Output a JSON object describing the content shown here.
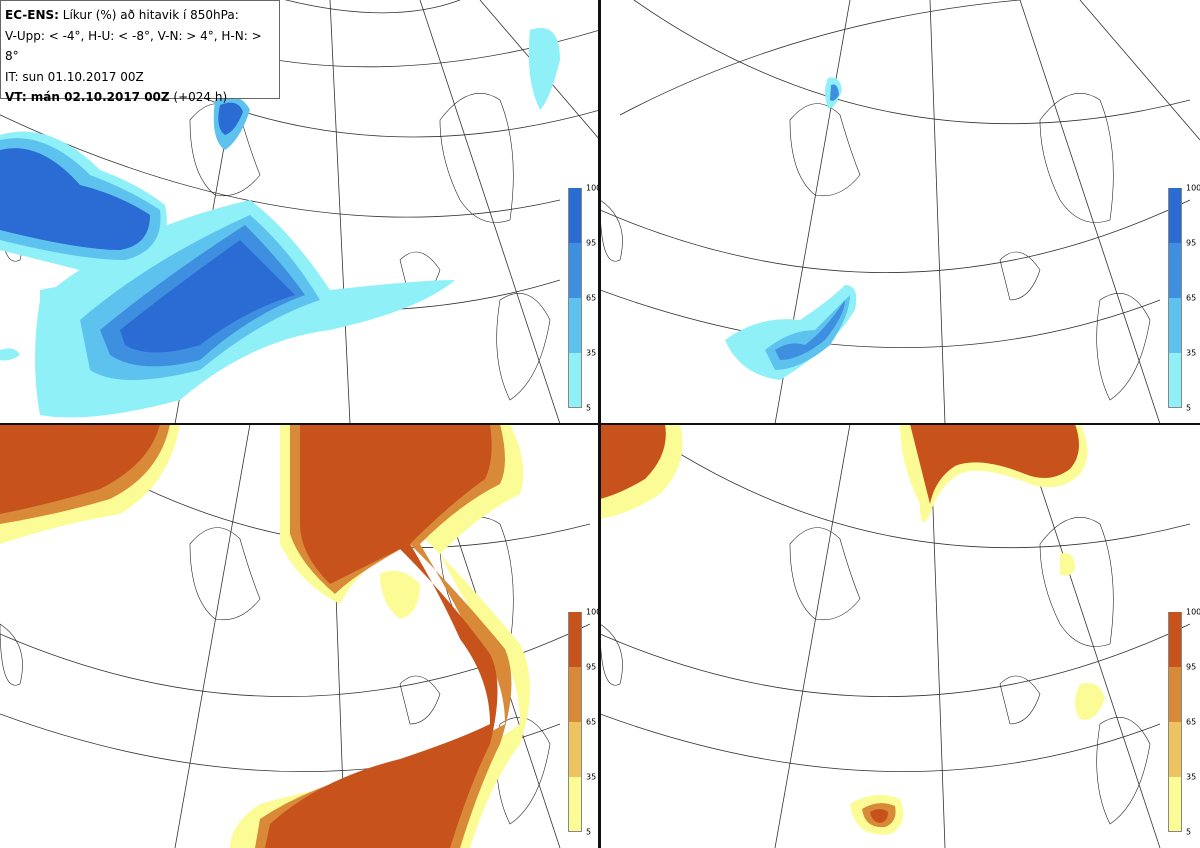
{
  "header": {
    "line1_bold": "EC-ENS:",
    "line1_rest": " Líkur (%) að hitavik í 850hPa:",
    "line2": "V-Upp: < -4°, H-U: < -8°, V-N: > 4°, H-N: > 8°",
    "line3": "IT: sun 01.10.2017 00Z",
    "line4_bold": "VT: mán 02.10.2017 00Z",
    "line4_rest": " (+024 h)"
  },
  "colorbar": {
    "ticks": [
      "100",
      "95",
      "65",
      "35",
      "5"
    ],
    "cold_colors": [
      "#2a6bd4",
      "#3f8fe0",
      "#5dc3ee",
      "#8ff0f8"
    ],
    "warm_colors": [
      "#c8521c",
      "#d88a38",
      "#eec460",
      "#fcfc96"
    ]
  },
  "panels": [
    {
      "name": "cold-moderate",
      "legend": "cold"
    },
    {
      "name": "cold-strong",
      "legend": "cold"
    },
    {
      "name": "warm-moderate",
      "legend": "warm"
    },
    {
      "name": "warm-strong",
      "legend": "warm"
    }
  ]
}
